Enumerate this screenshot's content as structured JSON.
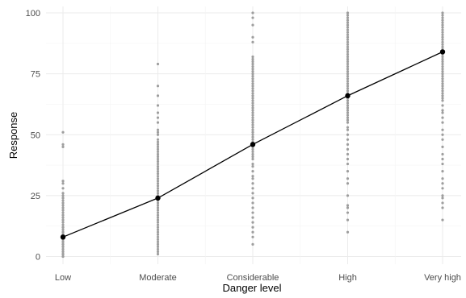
{
  "chart_data": {
    "type": "scatter",
    "title": "",
    "xlabel": "Danger level",
    "ylabel": "Response",
    "categories": [
      "Low",
      "Moderate",
      "Considerable",
      "High",
      "Very high"
    ],
    "ylim": [
      0,
      100
    ],
    "yticks": [
      0,
      25,
      50,
      75,
      100
    ],
    "grid": true,
    "legend": "none",
    "colors": {
      "points": "#9e9e9e",
      "mean_line": "#000000",
      "mean_point": "#000000",
      "grid": "#ebebeb"
    },
    "series": [
      {
        "kind": "individual responses",
        "points_by_category": [
          [
            0,
            0,
            1,
            1,
            1,
            2,
            2,
            3,
            3,
            4,
            4,
            5,
            5,
            6,
            6,
            7,
            7,
            8,
            8,
            9,
            9,
            10,
            10,
            11,
            12,
            12,
            13,
            14,
            15,
            16,
            17,
            18,
            19,
            20,
            21,
            22,
            23,
            24,
            25,
            26,
            28,
            30,
            31,
            45,
            46,
            51
          ],
          [
            1,
            2,
            3,
            4,
            5,
            6,
            7,
            8,
            9,
            10,
            11,
            12,
            13,
            14,
            15,
            16,
            17,
            18,
            19,
            20,
            21,
            22,
            23,
            24,
            25,
            26,
            27,
            28,
            29,
            30,
            31,
            32,
            33,
            34,
            35,
            36,
            37,
            38,
            39,
            40,
            41,
            42,
            43,
            44,
            45,
            46,
            47,
            48,
            50,
            51,
            52,
            55,
            57,
            59,
            62,
            66,
            70,
            79
          ],
          [
            5,
            8,
            10,
            12,
            14,
            16,
            18,
            20,
            22,
            24,
            26,
            28,
            30,
            32,
            33,
            35,
            37,
            38,
            40,
            41,
            42,
            43,
            44,
            45,
            46,
            47,
            48,
            49,
            50,
            51,
            52,
            53,
            54,
            55,
            56,
            57,
            58,
            59,
            60,
            61,
            62,
            63,
            64,
            65,
            66,
            67,
            68,
            69,
            70,
            71,
            72,
            73,
            74,
            75,
            76,
            77,
            78,
            79,
            80,
            81,
            82,
            88,
            90,
            95,
            98,
            100
          ],
          [
            10,
            15,
            18,
            20,
            21,
            25,
            30,
            32,
            35,
            38,
            40,
            42,
            44,
            46,
            48,
            50,
            52,
            53,
            55,
            56,
            57,
            58,
            59,
            60,
            61,
            62,
            63,
            64,
            65,
            66,
            67,
            68,
            69,
            70,
            71,
            72,
            73,
            74,
            75,
            76,
            77,
            78,
            79,
            80,
            81,
            82,
            83,
            84,
            85,
            86,
            87,
            88,
            89,
            90,
            91,
            92,
            93,
            94,
            95,
            96,
            97,
            98,
            99,
            100
          ],
          [
            15,
            20,
            22,
            24,
            25,
            28,
            30,
            32,
            35,
            38,
            40,
            42,
            45,
            48,
            50,
            52,
            55,
            57,
            59,
            60,
            62,
            64,
            65,
            66,
            67,
            68,
            69,
            70,
            71,
            72,
            73,
            74,
            75,
            76,
            77,
            78,
            79,
            80,
            81,
            82,
            83,
            84,
            85,
            86,
            87,
            88,
            89,
            90,
            91,
            92,
            93,
            94,
            95,
            96,
            97,
            98,
            99,
            100
          ]
        ]
      },
      {
        "kind": "mean",
        "values": [
          8,
          24,
          46,
          66,
          84
        ]
      }
    ]
  }
}
